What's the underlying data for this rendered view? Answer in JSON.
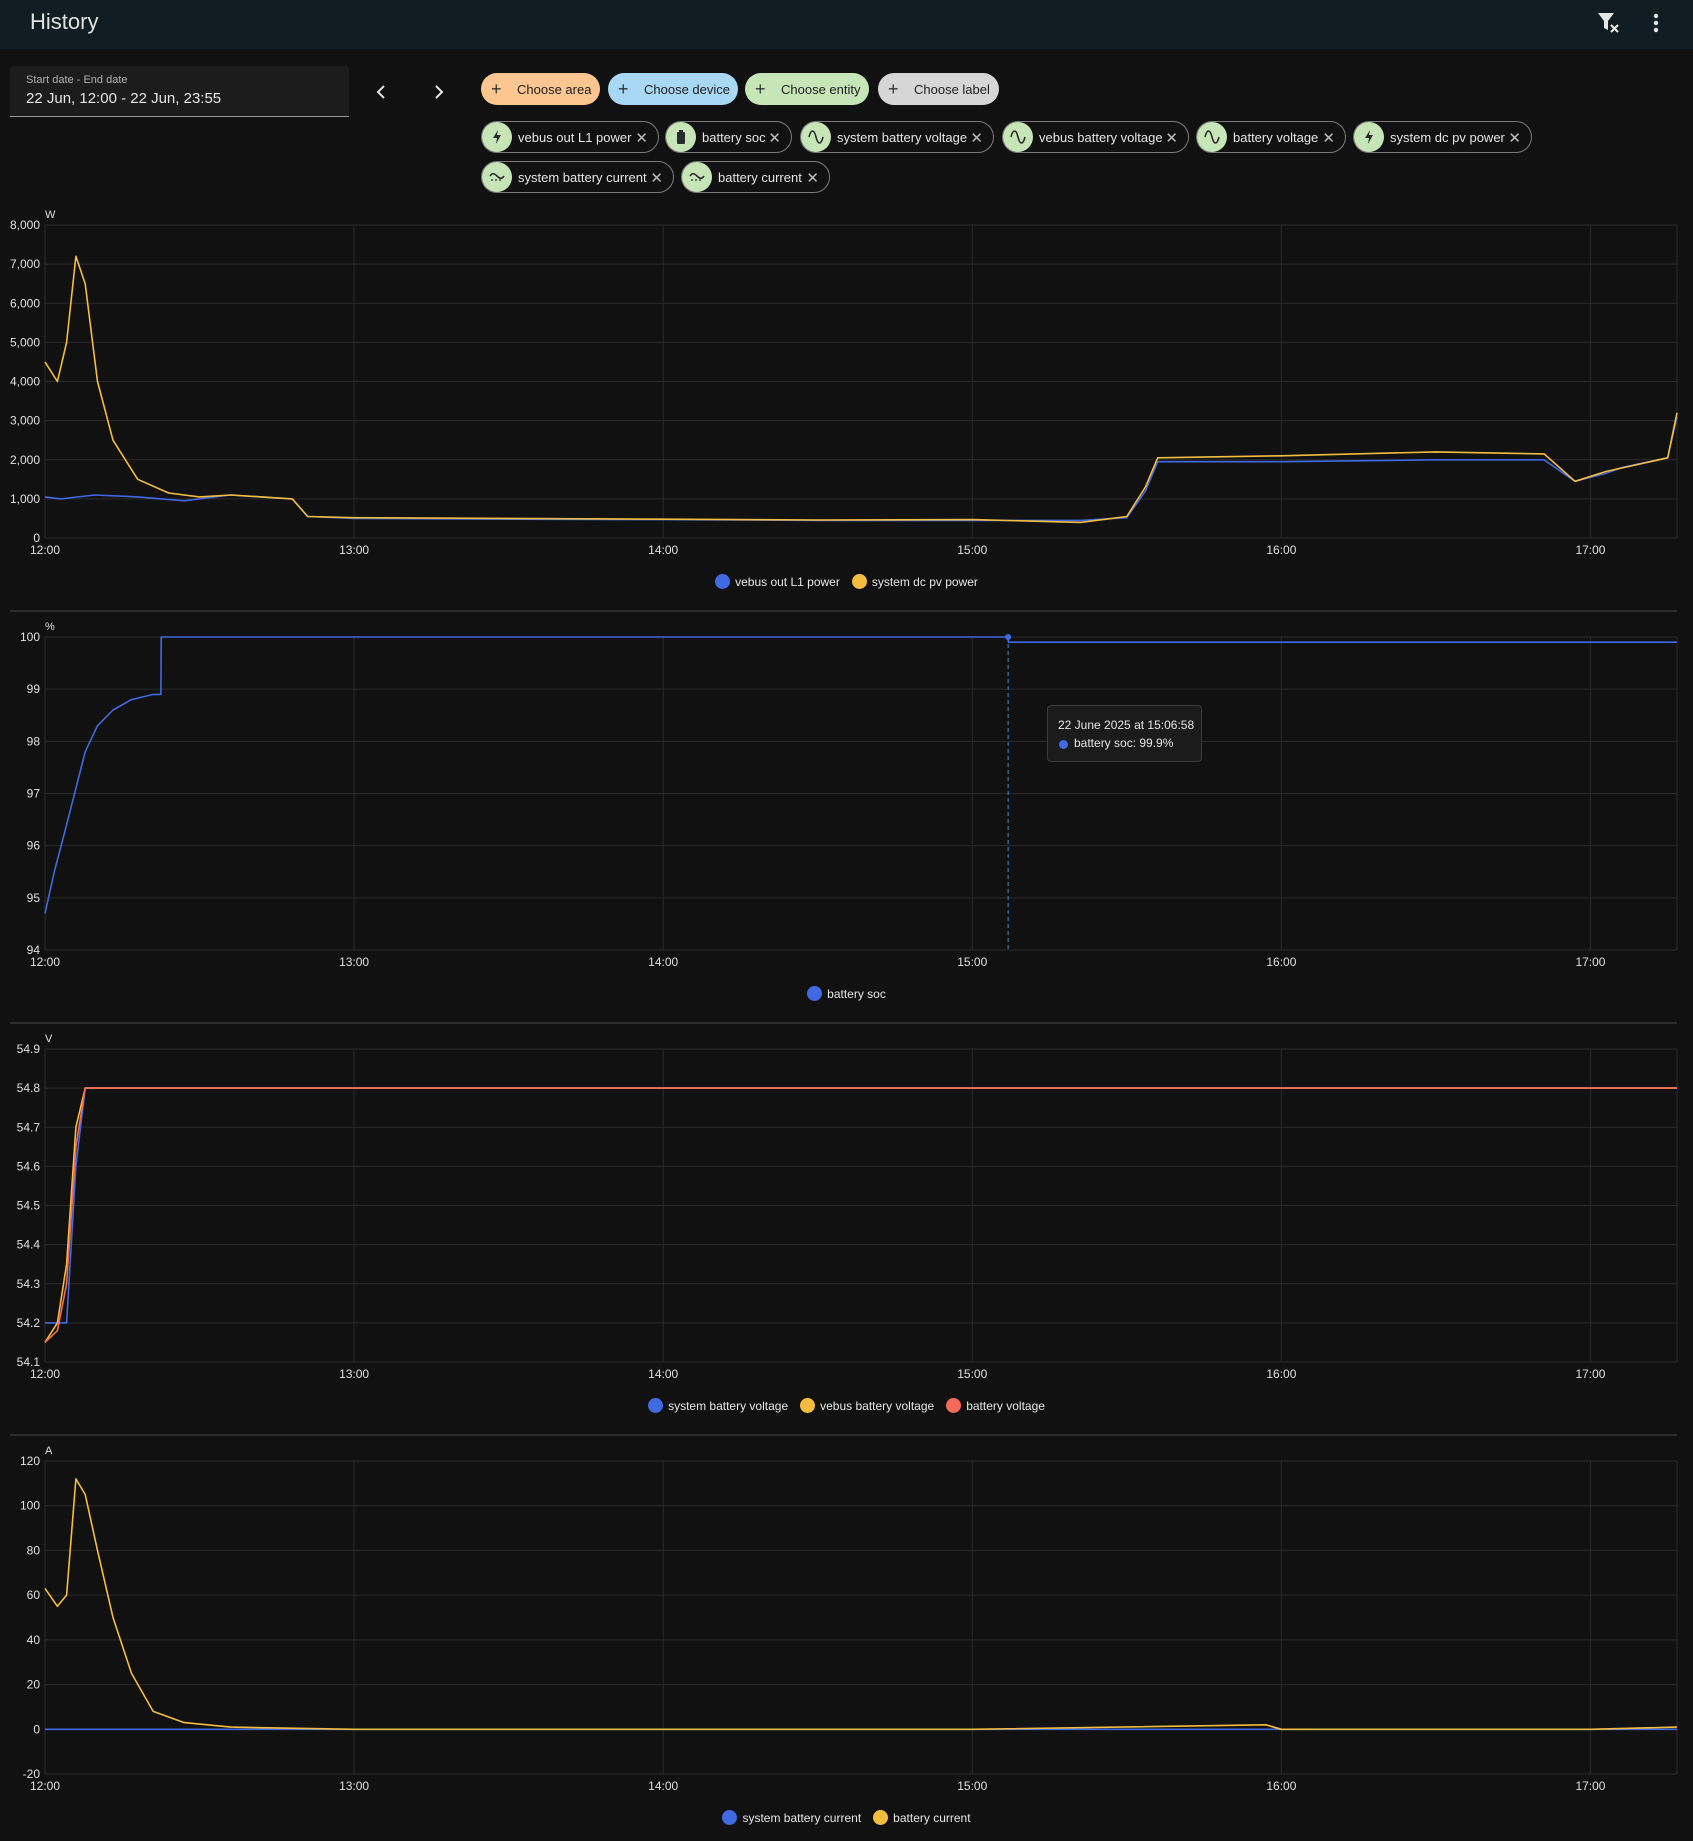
{
  "app": {
    "title": "History"
  },
  "date_range": {
    "label": "Start date - End date",
    "value": "22 Jun, 12:00 - 22 Jun, 23:55"
  },
  "pickers": [
    {
      "label": "Choose area",
      "color": "#fcc690"
    },
    {
      "label": "Choose device",
      "color": "#a9d8f4"
    },
    {
      "label": "Choose entity",
      "color": "#c7e6b8"
    },
    {
      "label": "Choose label",
      "color": "#d6d6d6"
    }
  ],
  "entities": [
    {
      "label": "vebus out L1 power",
      "icon": "flash-icon"
    },
    {
      "label": "battery soc",
      "icon": "battery-icon"
    },
    {
      "label": "system battery voltage",
      "icon": "sine-wave-icon"
    },
    {
      "label": "vebus battery voltage",
      "icon": "sine-wave-icon"
    },
    {
      "label": "battery voltage",
      "icon": "sine-wave-icon"
    },
    {
      "label": "system dc pv power",
      "icon": "flash-icon"
    },
    {
      "label": "system battery current",
      "icon": "current-icon"
    },
    {
      "label": "battery current",
      "icon": "current-icon"
    }
  ],
  "tooltip": {
    "title": "22 June 2025 at 15:06:58",
    "text": "battery soc: 99.9%"
  },
  "colors": {
    "blue": "#4169e1",
    "yellow": "#f5bd3f",
    "red": "#f36a58"
  },
  "chart_data": [
    {
      "type": "line",
      "unit": "W",
      "x_ticks": [
        "12:00",
        "13:00",
        "14:00",
        "15:00",
        "16:00",
        "17:00"
      ],
      "y_ticks": [
        "8,000",
        "7,000",
        "6,000",
        "5,000",
        "4,000",
        "3,000",
        "2,000",
        "1,000",
        "0"
      ],
      "ylim": [
        0,
        8000
      ],
      "xlim_hours": [
        12.0,
        17.28
      ],
      "series": [
        {
          "name": "vebus out L1 power",
          "color": "#4169e1",
          "x": [
            12.0,
            12.05,
            12.16,
            12.3,
            12.45,
            12.6,
            12.8,
            12.85,
            13.0,
            13.5,
            14.0,
            14.5,
            15.0,
            15.35,
            15.5,
            15.56,
            15.6,
            16.0,
            16.5,
            16.85,
            16.95,
            17.05,
            17.1,
            17.25,
            17.28
          ],
          "y": [
            1050,
            1000,
            1100,
            1050,
            950,
            1100,
            1000,
            550,
            500,
            480,
            470,
            450,
            450,
            450,
            520,
            1200,
            1950,
            1950,
            2000,
            2000,
            1450,
            1650,
            1800,
            2050,
            3100
          ]
        },
        {
          "name": "system dc pv power",
          "color": "#f5bd3f",
          "x": [
            12.0,
            12.04,
            12.07,
            12.1,
            12.13,
            12.17,
            12.22,
            12.3,
            12.4,
            12.5,
            12.6,
            12.8,
            12.85,
            13.0,
            13.5,
            14.0,
            14.5,
            15.0,
            15.35,
            15.5,
            15.56,
            15.6,
            16.0,
            16.5,
            16.85,
            16.95,
            17.05,
            17.25,
            17.28
          ],
          "y": [
            4500,
            4000,
            5000,
            7200,
            6500,
            4000,
            2500,
            1500,
            1150,
            1050,
            1100,
            1000,
            550,
            520,
            500,
            480,
            460,
            470,
            400,
            550,
            1300,
            2050,
            2100,
            2200,
            2150,
            1450,
            1700,
            2050,
            3200
          ]
        }
      ]
    },
    {
      "type": "line",
      "unit": "%",
      "x_ticks": [
        "12:00",
        "13:00",
        "14:00",
        "15:00",
        "16:00",
        "17:00"
      ],
      "y_ticks": [
        "100",
        "99",
        "98",
        "97",
        "96",
        "95",
        "94"
      ],
      "ylim": [
        94,
        100
      ],
      "xlim_hours": [
        12.0,
        17.28
      ],
      "series": [
        {
          "name": "battery soc",
          "color": "#4169e1",
          "x": [
            12.0,
            12.03,
            12.07,
            12.1,
            12.13,
            12.17,
            12.22,
            12.28,
            12.35,
            12.375,
            12.376,
            15.116,
            15.117,
            17.28
          ],
          "y": [
            94.7,
            95.5,
            96.4,
            97.1,
            97.8,
            98.3,
            98.6,
            98.8,
            98.9,
            98.9,
            100.0,
            100.0,
            99.9,
            99.9
          ]
        }
      ]
    },
    {
      "type": "line",
      "unit": "V",
      "x_ticks": [
        "12:00",
        "13:00",
        "14:00",
        "15:00",
        "16:00",
        "17:00"
      ],
      "y_ticks": [
        "54.9",
        "54.8",
        "54.7",
        "54.6",
        "54.5",
        "54.4",
        "54.3",
        "54.2",
        "54.1"
      ],
      "ylim": [
        54.1,
        54.9
      ],
      "xlim_hours": [
        12.0,
        17.28
      ],
      "series": [
        {
          "name": "system battery voltage",
          "color": "#4169e1",
          "x": [
            12.0,
            12.07,
            12.1,
            12.13,
            17.28
          ],
          "y": [
            54.2,
            54.2,
            54.6,
            54.8,
            54.8
          ]
        },
        {
          "name": "vebus battery voltage",
          "color": "#f5bd3f",
          "x": [
            12.0,
            12.04,
            12.07,
            12.1,
            12.13,
            17.28
          ],
          "y": [
            54.15,
            54.2,
            54.35,
            54.7,
            54.8,
            54.8
          ]
        },
        {
          "name": "battery voltage",
          "color": "#f36a58",
          "x": [
            12.0,
            12.04,
            12.07,
            12.1,
            12.13,
            17.28
          ],
          "y": [
            54.15,
            54.18,
            54.3,
            54.65,
            54.8,
            54.8
          ]
        }
      ]
    },
    {
      "type": "line",
      "unit": "A",
      "x_ticks": [
        "12:00",
        "13:00",
        "14:00",
        "15:00",
        "16:00",
        "17:00"
      ],
      "y_ticks": [
        "120",
        "100",
        "80",
        "60",
        "40",
        "20",
        "0",
        "-20"
      ],
      "ylim": [
        -20,
        120
      ],
      "xlim_hours": [
        12.0,
        17.28
      ],
      "series": [
        {
          "name": "system battery current",
          "color": "#4169e1",
          "x": [
            12.0,
            12.5,
            13.0,
            14.0,
            15.0,
            16.0,
            17.0,
            17.28
          ],
          "y": [
            0,
            0,
            0,
            0,
            0,
            0,
            0,
            0
          ]
        },
        {
          "name": "battery current",
          "color": "#f5bd3f",
          "x": [
            12.0,
            12.04,
            12.07,
            12.1,
            12.13,
            12.17,
            12.22,
            12.28,
            12.35,
            12.45,
            12.6,
            13.0,
            14.0,
            15.0,
            15.95,
            16.0,
            17.0,
            17.28
          ],
          "y": [
            63,
            55,
            60,
            112,
            105,
            80,
            50,
            25,
            8,
            3,
            1,
            0,
            0,
            0,
            2,
            0,
            0,
            1
          ]
        }
      ]
    }
  ]
}
